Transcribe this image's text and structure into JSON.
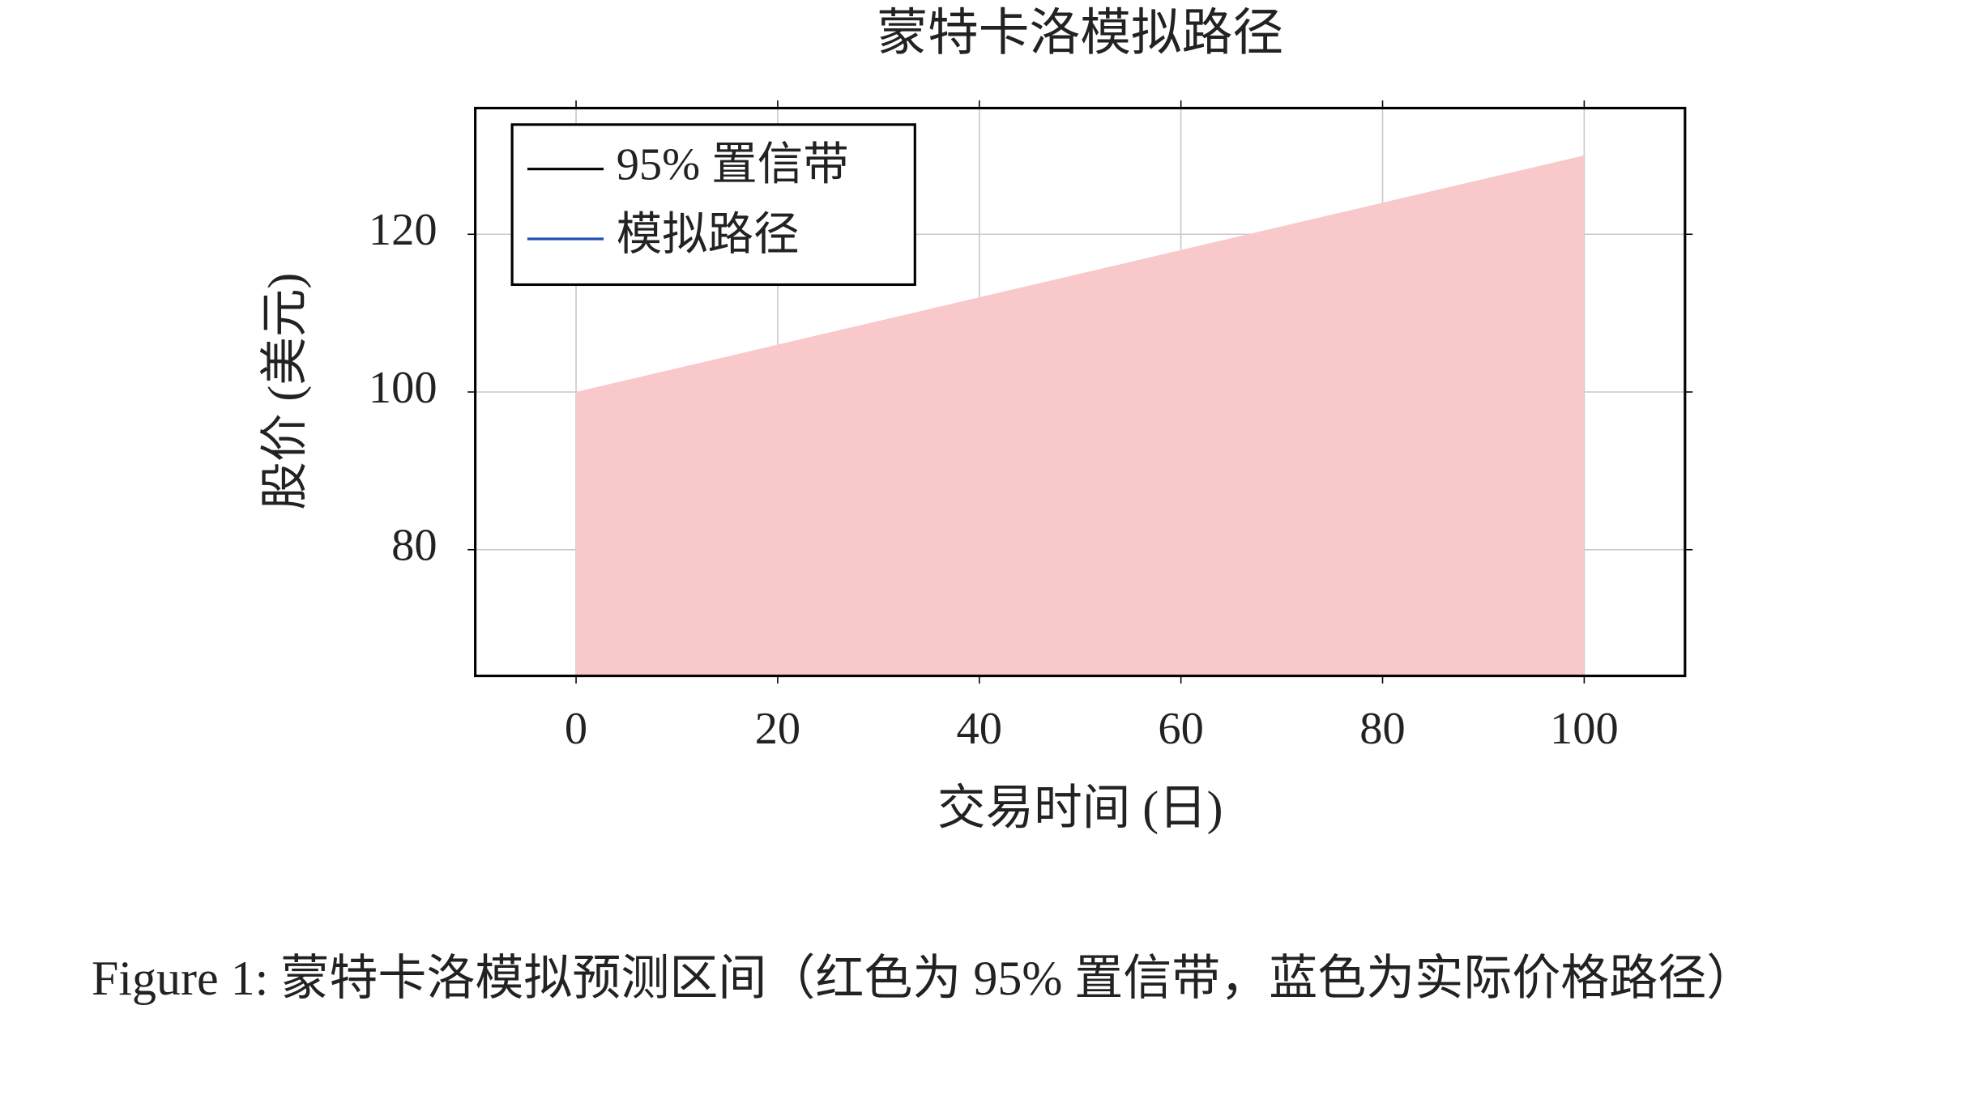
{
  "chart_data": {
    "type": "area",
    "title": "蒙特卡洛模拟路径",
    "x_label": "交易时间 (日)",
    "y_label": "股价 (美元)",
    "x": [
      0,
      100
    ],
    "series": [
      {
        "name": "95% 置信带",
        "color": "#f8c8ca",
        "line_color": "#000000",
        "values": [
          100,
          130
        ]
      },
      {
        "name": "模拟路径",
        "color": "#1f4fb4",
        "values": [
          null,
          null
        ]
      }
    ],
    "xlim": [
      -10,
      110
    ],
    "xticks": [
      0,
      20,
      40,
      60,
      80,
      100
    ],
    "ylim": [
      64,
      136
    ],
    "yticks": [
      80,
      100,
      120
    ],
    "grid": true,
    "legend": "upper-left"
  },
  "caption": "Figure 1: 蒙特卡洛模拟预测区间（红色为 95% 置信带，蓝色为实际价格路径）"
}
